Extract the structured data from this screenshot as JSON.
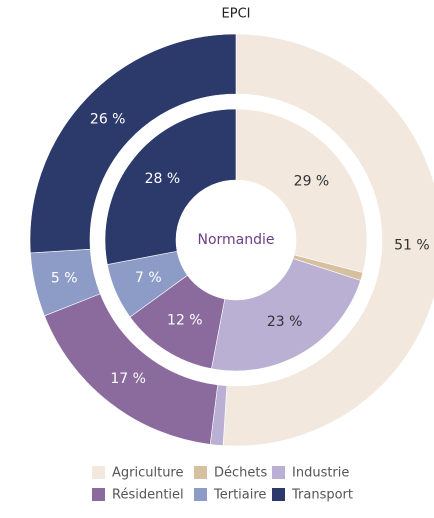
{
  "chart_data": {
    "type": "donut",
    "categories": [
      "Agriculture",
      "Déchets",
      "Industrie",
      "Résidentiel",
      "Tertiaire",
      "Transport"
    ],
    "colors": [
      "#f2e8dd",
      "#d6c0a0",
      "#b9b0d3",
      "#8b6b9d",
      "#8d9cc6",
      "#2b396b"
    ],
    "series": [
      {
        "name": "EPCI",
        "values": [
          51,
          0,
          1,
          17,
          5,
          26
        ],
        "value_labels": [
          "51 %",
          null,
          null,
          "17 %",
          "5 %",
          "26 %"
        ]
      },
      {
        "name": "Normandie",
        "values": [
          29,
          1,
          23,
          12,
          7,
          28
        ],
        "value_labels": [
          "29 %",
          null,
          "23 %",
          "12 %",
          "7 %",
          "28 %"
        ]
      }
    ]
  }
}
